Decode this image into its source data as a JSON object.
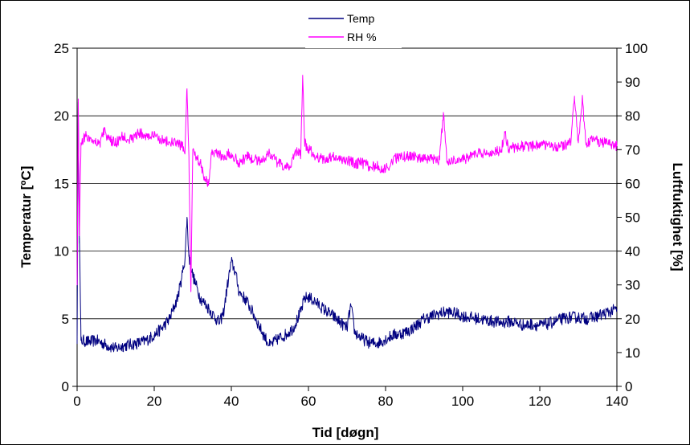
{
  "chart_data": {
    "type": "line",
    "xlabel": "Tid [døgn]",
    "ylabel_left": "Temperatur [ºC]",
    "ylabel_right": "Luftfuktighet [%]",
    "xlim": [
      0,
      140
    ],
    "ylim_left": [
      0,
      25
    ],
    "ylim_right": [
      0,
      100
    ],
    "x_ticks": [
      "0",
      "20",
      "40",
      "60",
      "80",
      "100",
      "120",
      "140"
    ],
    "y_left_ticks": [
      "0",
      "5",
      "10",
      "15",
      "20",
      "25"
    ],
    "y_right_ticks": [
      "0",
      "10",
      "20",
      "30",
      "40",
      "50",
      "60",
      "70",
      "80",
      "90",
      "100"
    ],
    "grid": "horizontal",
    "legend": "top-center",
    "series": [
      {
        "name": "Temp",
        "axis": "left",
        "color": "#000080",
        "x": [
          0,
          0.3,
          0.6,
          1,
          3,
          5,
          8,
          10,
          12,
          14,
          16,
          18,
          20,
          22,
          24,
          26,
          27,
          28,
          28.5,
          29,
          30,
          32,
          34,
          36,
          37,
          38,
          39,
          40,
          41,
          42,
          44,
          46,
          48,
          50,
          52,
          54,
          56,
          58,
          59,
          60,
          62,
          64,
          66,
          68,
          70,
          71,
          72,
          74,
          76,
          78,
          80,
          82,
          84,
          86,
          88,
          90,
          92,
          94,
          96,
          98,
          100,
          102,
          104,
          106,
          108,
          110,
          112,
          114,
          116,
          118,
          120,
          122,
          124,
          126,
          128,
          130,
          132,
          134,
          136,
          138,
          140
        ],
        "y": [
          3.5,
          21,
          11,
          3.4,
          3.3,
          3.4,
          3.0,
          2.8,
          3.0,
          3.1,
          3.2,
          3.4,
          3.8,
          4.3,
          5.0,
          6.5,
          7.8,
          9.5,
          12.5,
          9.6,
          8.2,
          6.5,
          5.8,
          5.0,
          4.7,
          5.5,
          7.5,
          9.2,
          8.5,
          7.0,
          6.3,
          5.2,
          4.0,
          3.0,
          3.5,
          3.8,
          4.3,
          5.5,
          6.5,
          6.6,
          6.2,
          5.7,
          5.3,
          4.8,
          4.3,
          6.0,
          4.0,
          3.5,
          3.2,
          3.2,
          3.5,
          3.8,
          3.9,
          4.1,
          4.5,
          5.0,
          5.2,
          5.4,
          5.5,
          5.4,
          5.2,
          5.1,
          5.0,
          4.9,
          4.8,
          4.7,
          4.8,
          4.7,
          4.5,
          4.6,
          4.5,
          4.6,
          4.8,
          5.0,
          5.1,
          5.1,
          5.0,
          5.1,
          5.3,
          5.5,
          5.7
        ]
      },
      {
        "name": "RH %",
        "axis": "right",
        "color": "#ff00ff",
        "x": [
          0,
          0.3,
          0.6,
          1,
          2,
          4,
          6,
          7,
          8,
          10,
          12,
          14,
          16,
          18,
          20,
          22,
          24,
          26,
          27,
          28,
          28.5,
          29,
          29.5,
          30,
          31,
          32,
          33,
          34,
          35,
          36,
          38,
          40,
          42,
          44,
          46,
          48,
          50,
          52,
          54,
          55,
          56,
          57,
          58,
          58.5,
          59,
          60,
          62,
          64,
          66,
          68,
          70,
          72,
          74,
          76,
          78,
          80,
          82,
          84,
          86,
          88,
          90,
          92,
          94,
          95,
          96,
          98,
          100,
          102,
          104,
          106,
          108,
          110,
          111,
          112,
          114,
          116,
          118,
          120,
          122,
          124,
          126,
          128,
          129,
          130,
          131,
          132,
          134,
          136,
          138,
          140
        ],
        "y": [
          30,
          85,
          45,
          72,
          74,
          73,
          72,
          76,
          73,
          72,
          74,
          73,
          75,
          74,
          74,
          73,
          72,
          72,
          71,
          70,
          88,
          68,
          28,
          70,
          68,
          66,
          62,
          60,
          70,
          69,
          68,
          69,
          66,
          68,
          67,
          67,
          69,
          66,
          65,
          64,
          68,
          70,
          68,
          92,
          72,
          70,
          68,
          67,
          68,
          67,
          67,
          66,
          66,
          65,
          65,
          64,
          67,
          68,
          68,
          68,
          67,
          67,
          67,
          81,
          66,
          67,
          67,
          68,
          69,
          69,
          69,
          70,
          75,
          70,
          71,
          71,
          71,
          72,
          71,
          71,
          71,
          72,
          85,
          72,
          85,
          72,
          73,
          72,
          72,
          71
        ]
      }
    ]
  }
}
